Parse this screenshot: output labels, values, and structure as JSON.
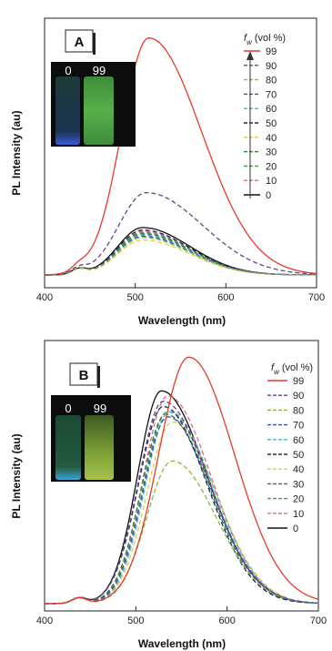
{
  "chart_data": [
    {
      "type": "line",
      "panel_label": "A",
      "xlabel": "Wavelength (nm)",
      "ylabel": "PL Intensity (au)",
      "xlim": [
        400,
        700
      ],
      "ylim": [
        0,
        100
      ],
      "x_ticks": [
        "400",
        "500",
        "600",
        "700"
      ],
      "grid": false,
      "legend_title_main": "f",
      "legend_title_sub": "w",
      "legend_title_unit": "(vol %)",
      "legend_position": "top-right",
      "inset_labels": [
        "0",
        "99"
      ],
      "series": [
        {
          "name": "99",
          "color": "#e8392d",
          "style": "solid",
          "peak_x": 515,
          "peak_y": 95,
          "w_left": 30,
          "w_right": 58
        },
        {
          "name": "90",
          "color": "#6b3f8f",
          "style": "dashed",
          "peak_x": 512,
          "peak_y": 33,
          "w_left": 30,
          "w_right": 62
        },
        {
          "name": "80",
          "color": "#8ab83a",
          "style": "dashed",
          "peak_x": 508,
          "peak_y": 15,
          "w_left": 27,
          "w_right": 52
        },
        {
          "name": "70",
          "color": "#3f4fa8",
          "style": "dashed",
          "peak_x": 508,
          "peak_y": 15.5,
          "w_left": 27,
          "w_right": 52
        },
        {
          "name": "60",
          "color": "#47b3d9",
          "style": "dashed",
          "peak_x": 508,
          "peak_y": 16,
          "w_left": 27,
          "w_right": 52
        },
        {
          "name": "50",
          "color": "#1d2a5a",
          "style": "dashed",
          "peak_x": 508,
          "peak_y": 18,
          "w_left": 27,
          "w_right": 52
        },
        {
          "name": "40",
          "color": "#e3cf3a",
          "style": "dashed",
          "peak_x": 508,
          "peak_y": 14,
          "w_left": 27,
          "w_right": 52
        },
        {
          "name": "30",
          "color": "#2e7d3a",
          "style": "dashed",
          "peak_x": 508,
          "peak_y": 16.5,
          "w_left": 27,
          "w_right": 52
        },
        {
          "name": "20",
          "color": "#3f9a4a",
          "style": "dashed",
          "peak_x": 508,
          "peak_y": 17,
          "w_left": 27,
          "w_right": 52
        },
        {
          "name": "10",
          "color": "#e36a8a",
          "style": "dashed",
          "peak_x": 508,
          "peak_y": 17.5,
          "w_left": 27,
          "w_right": 52
        },
        {
          "name": "0",
          "color": "#111111",
          "style": "solid",
          "peak_x": 508,
          "peak_y": 19,
          "w_left": 27,
          "w_right": 52
        }
      ]
    },
    {
      "type": "line",
      "panel_label": "B",
      "xlabel": "Wavelength (nm)",
      "ylabel": "PL Intensity (au)",
      "xlim": [
        400,
        700
      ],
      "ylim": [
        0,
        100
      ],
      "x_ticks": [
        "400",
        "500",
        "600",
        "700"
      ],
      "grid": false,
      "legend_title_main": "f",
      "legend_title_sub": "w",
      "legend_title_unit": "(vol %)",
      "legend_position": "top-right",
      "inset_labels": [
        "0",
        "99"
      ],
      "series": [
        {
          "name": "99",
          "color": "#e8392d",
          "style": "solid",
          "peak_x": 558,
          "peak_y": 95,
          "w_left": 33,
          "w_right": 50
        },
        {
          "name": "90",
          "color": "#6b3f8f",
          "style": "dashed",
          "peak_x": 530,
          "peak_y": 78,
          "w_left": 27,
          "w_right": 50
        },
        {
          "name": "80",
          "color": "#8ab83a",
          "style": "dashed",
          "peak_x": 540,
          "peak_y": 55,
          "w_left": 28,
          "w_right": 48
        },
        {
          "name": "70",
          "color": "#3f4fa8",
          "style": "dashed",
          "peak_x": 535,
          "peak_y": 72,
          "w_left": 27,
          "w_right": 48
        },
        {
          "name": "60",
          "color": "#47b3d9",
          "style": "dashed",
          "peak_x": 537,
          "peak_y": 74,
          "w_left": 27,
          "w_right": 48
        },
        {
          "name": "50",
          "color": "#1d2a5a",
          "style": "dashed",
          "peak_x": 530,
          "peak_y": 76,
          "w_left": 27,
          "w_right": 48
        },
        {
          "name": "40",
          "color": "#e3cf3a",
          "style": "dashed",
          "peak_x": 540,
          "peak_y": 70,
          "w_left": 28,
          "w_right": 48
        },
        {
          "name": "30",
          "color": "#2e7d3a",
          "style": "dashed",
          "peak_x": 533,
          "peak_y": 73,
          "w_left": 27,
          "w_right": 48
        },
        {
          "name": "20",
          "color": "#3f9a4a",
          "style": "dashed",
          "peak_x": 535,
          "peak_y": 74,
          "w_left": 27,
          "w_right": 48
        },
        {
          "name": "10",
          "color": "#e36a8a",
          "style": "dashed",
          "peak_x": 535,
          "peak_y": 80,
          "w_left": 27,
          "w_right": 48
        },
        {
          "name": "0",
          "color": "#111111",
          "style": "solid",
          "peak_x": 528,
          "peak_y": 82,
          "w_left": 26,
          "w_right": 50
        }
      ]
    }
  ]
}
